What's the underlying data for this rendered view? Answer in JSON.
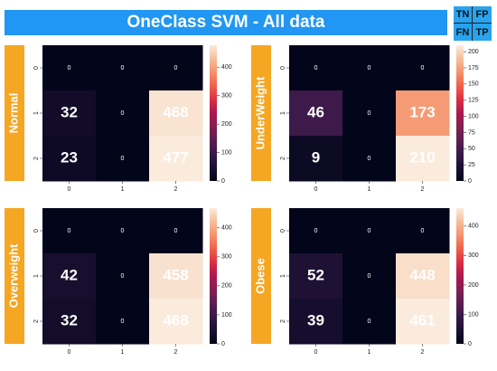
{
  "title": "OneClass SVM - All data",
  "colors": {
    "title_bg": "#2196f3",
    "legend_bg": "#29a3ee",
    "label_bg": "#f5a623"
  },
  "legend": {
    "tl": "TN",
    "tr": "FP",
    "bl": "FN",
    "br": "TP"
  },
  "chart_data": [
    {
      "type": "heatmap",
      "label": "Normal",
      "x_ticks": [
        "0",
        "1",
        "2"
      ],
      "y_ticks": [
        "0",
        "1",
        "2"
      ],
      "matrix": [
        [
          0,
          0,
          0
        ],
        [
          32,
          0,
          468
        ],
        [
          23,
          0,
          477
        ]
      ],
      "colorbar": {
        "ticks": [
          0,
          100,
          200,
          300,
          400
        ],
        "range": [
          0,
          477
        ]
      }
    },
    {
      "type": "heatmap",
      "label": "UnderWeight",
      "x_ticks": [
        "0",
        "1",
        "2"
      ],
      "y_ticks": [
        "0",
        "1",
        "2"
      ],
      "matrix": [
        [
          0,
          0,
          0
        ],
        [
          46,
          0,
          173
        ],
        [
          9,
          0,
          210
        ]
      ],
      "colorbar": {
        "ticks": [
          0,
          25,
          50,
          75,
          100,
          125,
          150,
          175,
          200
        ],
        "range": [
          0,
          210
        ]
      }
    },
    {
      "type": "heatmap",
      "label": "Overweight",
      "x_ticks": [
        "0",
        "1",
        "2"
      ],
      "y_ticks": [
        "0",
        "1",
        "2"
      ],
      "matrix": [
        [
          0,
          0,
          0
        ],
        [
          42,
          0,
          458
        ],
        [
          32,
          0,
          468
        ]
      ],
      "colorbar": {
        "ticks": [
          0,
          100,
          200,
          300,
          400
        ],
        "range": [
          0,
          468
        ]
      }
    },
    {
      "type": "heatmap",
      "label": "Obese",
      "x_ticks": [
        "0",
        "1",
        "2"
      ],
      "y_ticks": [
        "0",
        "1",
        "2"
      ],
      "matrix": [
        [
          0,
          0,
          0
        ],
        [
          52,
          0,
          448
        ],
        [
          39,
          0,
          461
        ]
      ],
      "colorbar": {
        "ticks": [
          0,
          100,
          200,
          300,
          400
        ],
        "range": [
          0,
          461
        ]
      }
    }
  ]
}
